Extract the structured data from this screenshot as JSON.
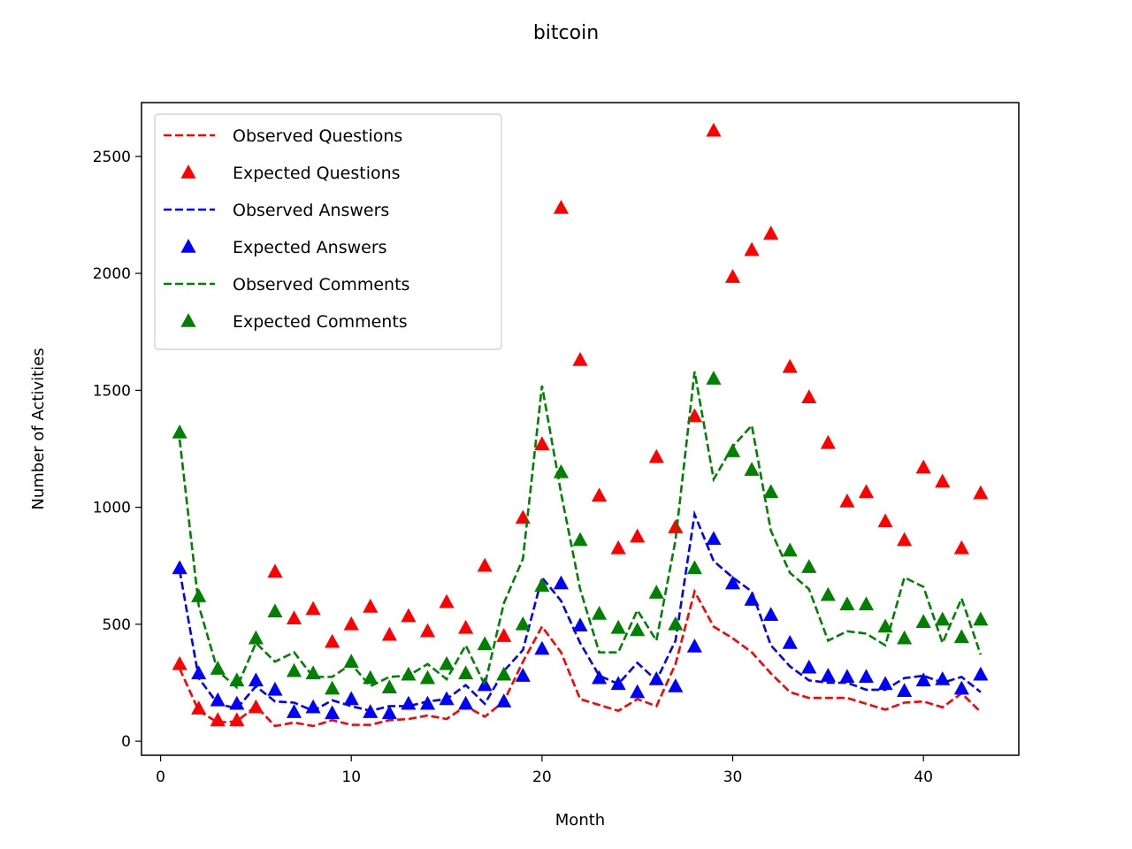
{
  "chart_data": {
    "type": "line",
    "title": "bitcoin",
    "xlabel": "Month",
    "ylabel": "Number of Activities",
    "xlim": [
      -1,
      45
    ],
    "ylim": [
      -60,
      2730
    ],
    "xticks": [
      0,
      10,
      20,
      30,
      40
    ],
    "yticks": [
      0,
      500,
      1000,
      1500,
      2000,
      2500
    ],
    "grid": false,
    "legend_position": "top-left",
    "x": [
      1,
      2,
      3,
      4,
      5,
      6,
      7,
      8,
      9,
      10,
      11,
      12,
      13,
      14,
      15,
      16,
      17,
      18,
      19,
      20,
      21,
      22,
      23,
      24,
      25,
      26,
      27,
      28,
      29,
      30,
      31,
      32,
      33,
      34,
      35,
      36,
      37,
      38,
      39,
      40,
      41,
      42,
      43
    ],
    "series": [
      {
        "name": "Observed Questions",
        "style": "dashed",
        "color": "#ff0000",
        "values": [
          310,
          130,
          80,
          85,
          150,
          65,
          80,
          65,
          90,
          70,
          70,
          90,
          95,
          110,
          95,
          150,
          105,
          170,
          340,
          490,
          380,
          180,
          155,
          130,
          180,
          150,
          330,
          640,
          490,
          440,
          380,
          290,
          210,
          185,
          185,
          185,
          160,
          135,
          165,
          170,
          145,
          205,
          125
        ]
      },
      {
        "name": "Expected Questions",
        "style": "triangle",
        "color": "#ff0000",
        "values": [
          330,
          140,
          90,
          90,
          145,
          725,
          525,
          565,
          425,
          500,
          575,
          455,
          535,
          470,
          595,
          485,
          750,
          450,
          955,
          1270,
          2280,
          1630,
          1050,
          825,
          875,
          1215,
          915,
          1390,
          2610,
          1985,
          2100,
          2170,
          1600,
          1470,
          1275,
          1025,
          1065,
          940,
          860,
          1170,
          1110,
          825,
          1060
        ]
      },
      {
        "name": "Observed Answers",
        "style": "dashed",
        "color": "#0000ff",
        "values": [
          730,
          270,
          160,
          140,
          235,
          170,
          165,
          130,
          175,
          150,
          130,
          150,
          150,
          170,
          180,
          240,
          160,
          300,
          390,
          700,
          600,
          420,
          280,
          245,
          335,
          260,
          430,
          970,
          770,
          700,
          640,
          410,
          320,
          260,
          250,
          250,
          220,
          220,
          270,
          280,
          250,
          275,
          210
        ]
      },
      {
        "name": "Expected Answers",
        "style": "triangle",
        "color": "#0000ff",
        "values": [
          740,
          290,
          175,
          160,
          260,
          220,
          125,
          145,
          120,
          180,
          125,
          120,
          160,
          160,
          180,
          160,
          240,
          170,
          280,
          395,
          675,
          495,
          270,
          245,
          210,
          265,
          235,
          405,
          865,
          675,
          605,
          540,
          420,
          315,
          280,
          275,
          275,
          245,
          215,
          260,
          265,
          225,
          285
        ]
      },
      {
        "name": "Observed Comments",
        "style": "dashed",
        "color": "#008000",
        "values": [
          1290,
          580,
          300,
          230,
          420,
          340,
          380,
          275,
          275,
          330,
          235,
          275,
          280,
          330,
          265,
          410,
          240,
          590,
          780,
          1520,
          1060,
          650,
          380,
          380,
          560,
          430,
          860,
          1580,
          1120,
          1260,
          1350,
          900,
          720,
          650,
          430,
          470,
          460,
          410,
          700,
          660,
          420,
          610,
          370
        ]
      },
      {
        "name": "Expected Comments",
        "style": "triangle",
        "color": "#008000",
        "values": [
          1320,
          620,
          310,
          260,
          440,
          555,
          300,
          290,
          225,
          340,
          270,
          230,
          285,
          270,
          330,
          290,
          415,
          285,
          500,
          665,
          1150,
          860,
          545,
          485,
          475,
          635,
          500,
          740,
          1550,
          1240,
          1160,
          1065,
          815,
          745,
          625,
          585,
          585,
          490,
          440,
          510,
          520,
          445,
          520
        ]
      }
    ]
  }
}
